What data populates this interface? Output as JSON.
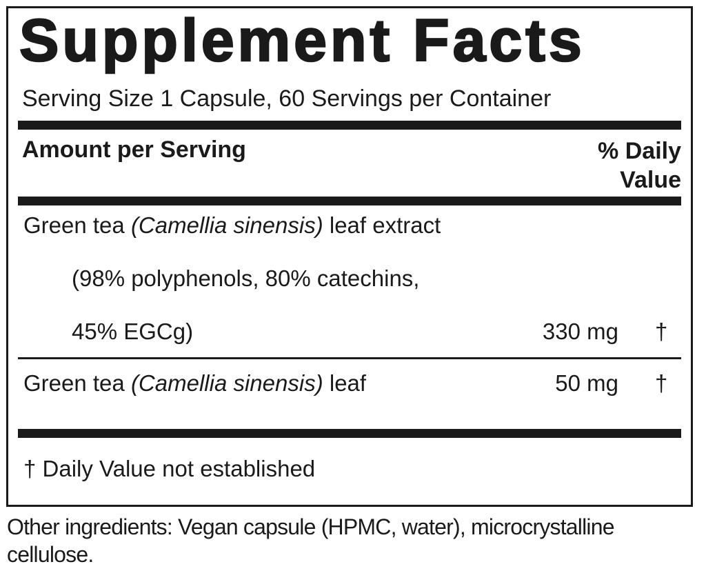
{
  "title": "Supplement Facts",
  "serving": "Serving Size 1 Capsule, 60 Servings per Container",
  "header": {
    "amount": "Amount per Serving",
    "daily_value": "% Daily Value"
  },
  "rows": [
    {
      "name": [
        "Green tea",
        "(Camellia sinensis)",
        "leaf extract"
      ],
      "details": [
        "(98% polyphenols, 80% catechins,",
        "45% EGCg)"
      ],
      "amount": "330 mg",
      "daily_value": "†"
    },
    {
      "name": [
        "Green tea",
        "(Camellia sinensis)",
        "leaf"
      ],
      "amount": "50 mg",
      "daily_value": "†"
    }
  ],
  "footnote": "† Daily Value not established",
  "other_ingredients": "Other ingredients: Vegan capsule (HPMC, water), microcrystalline cellulose."
}
